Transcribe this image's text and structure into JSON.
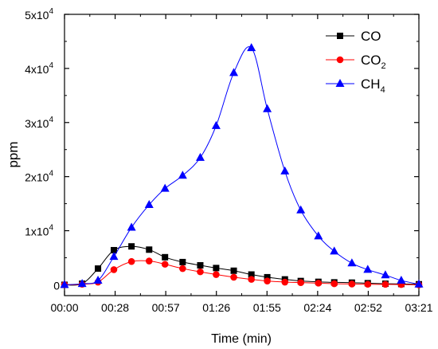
{
  "chart_data": {
    "type": "line",
    "title": "",
    "xlabel": "Time (min)",
    "ylabel": "ppm",
    "x_tick_labels": [
      "00:00",
      "00:28",
      "00:57",
      "01:26",
      "01:55",
      "02:24",
      "02:52",
      "03:21"
    ],
    "y_ticks": [
      {
        "value": 0,
        "mantissa": "0",
        "exponent": ""
      },
      {
        "value": 10000,
        "mantissa": "1x10",
        "exponent": "4"
      },
      {
        "value": 20000,
        "mantissa": "2x10",
        "exponent": "4"
      },
      {
        "value": 30000,
        "mantissa": "3x10",
        "exponent": "4"
      },
      {
        "value": 40000,
        "mantissa": "4x10",
        "exponent": "4"
      },
      {
        "value": 50000,
        "mantissa": "5x10",
        "exponent": "4"
      }
    ],
    "xlim": [
      0,
      201
    ],
    "ylim": [
      -2000,
      50000
    ],
    "x_unit": "seconds",
    "grid": false,
    "legend_position": "top-right",
    "series": [
      {
        "name": "CO",
        "name_sub": "",
        "color": "#000000",
        "marker": "square",
        "x": [
          0,
          10,
          19,
          28,
          38,
          48,
          57,
          67,
          77,
          86,
          96,
          106,
          115,
          125,
          134,
          144,
          153,
          163,
          172,
          182,
          191,
          201
        ],
        "y": [
          0,
          200,
          3000,
          6400,
          7100,
          6500,
          5100,
          4200,
          3600,
          3100,
          2600,
          1900,
          1400,
          1000,
          700,
          550,
          450,
          400,
          300,
          200,
          150,
          100
        ]
      },
      {
        "name": "CO",
        "name_sub": "2",
        "color": "#ff0000",
        "marker": "circle",
        "x": [
          0,
          10,
          19,
          28,
          38,
          48,
          57,
          67,
          77,
          86,
          96,
          106,
          115,
          125,
          134,
          144,
          153,
          163,
          172,
          182,
          191,
          201
        ],
        "y": [
          0,
          100,
          500,
          2800,
          4300,
          4400,
          3800,
          3000,
          2400,
          1900,
          1400,
          1000,
          700,
          500,
          400,
          300,
          200,
          150,
          100,
          80,
          50,
          0
        ]
      },
      {
        "name": "CH",
        "name_sub": "4",
        "color": "#0000ff",
        "marker": "triangle",
        "x": [
          0,
          10,
          19,
          28,
          38,
          48,
          57,
          67,
          77,
          86,
          96,
          106,
          115,
          125,
          134,
          144,
          153,
          163,
          172,
          182,
          191,
          201
        ],
        "y": [
          0,
          200,
          800,
          5200,
          10600,
          14800,
          17800,
          20200,
          23500,
          29400,
          39200,
          43800,
          32500,
          21000,
          13800,
          9000,
          6200,
          4000,
          2800,
          1800,
          800,
          100
        ]
      }
    ]
  }
}
